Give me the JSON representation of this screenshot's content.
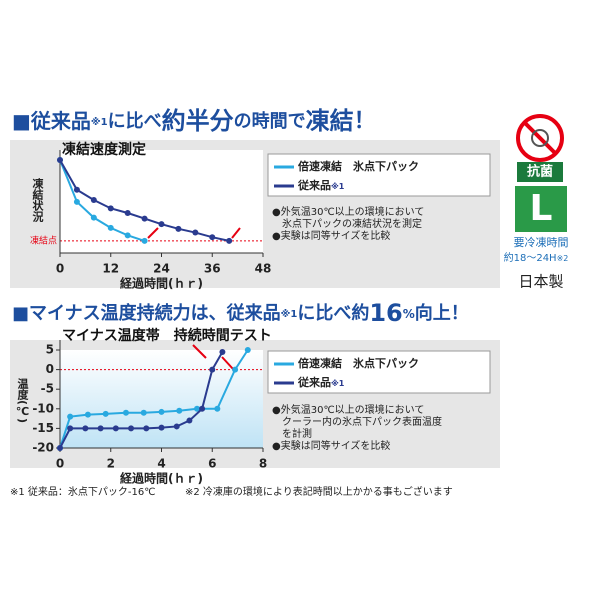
{
  "headings": [
    {
      "parts": [
        "■従来品",
        "※1",
        "に比べ",
        "約半分",
        "の時間で",
        "凍結",
        "！"
      ]
    },
    {
      "parts": [
        "■マイナス温度持続力は、従来品",
        "※1",
        "に比べ約",
        "16",
        "%",
        "向上！"
      ]
    }
  ],
  "badge": {
    "label": "抗菌",
    "size": "L",
    "freeze_time_label": "要冷凍時間",
    "freeze_time": "約18～24H",
    "freeze_time_note": "※2",
    "origin": "日本製"
  },
  "footnotes": [
    "※1 従来品：氷点下パック-16℃",
    "※2 冷凍庫の環境により表記時間以上かかる事もございます"
  ],
  "chart_data": [
    {
      "type": "line",
      "title": "凍結速度測定",
      "y_label": "凍結状況",
      "x_label": "経過時間(ｈｒ)",
      "threshold": {
        "value": 13,
        "label": "凍結点",
        "color": "#e60012"
      },
      "xlim": [
        0,
        48
      ],
      "xticks": [
        0,
        12,
        24,
        36,
        48
      ],
      "ylim": [
        0,
        100
      ],
      "series": [
        {
          "name": "倍速凍結　氷点下パック",
          "color": "#29a9e0",
          "x": [
            0,
            4,
            8,
            12,
            16,
            20
          ],
          "values": [
            100,
            55,
            38,
            27,
            19,
            13
          ]
        },
        {
          "name": "従来品",
          "name_note": "※1",
          "color": "#2a3b8f",
          "x": [
            0,
            4,
            8,
            12,
            16,
            20,
            24,
            28,
            32,
            36,
            40
          ],
          "values": [
            100,
            68,
            57,
            48,
            43,
            37,
            31,
            26,
            22,
            17,
            13
          ]
        }
      ],
      "notes": [
        "●外気温30℃以上の環境において",
        "氷点下パックの凍結状況を測定",
        "●実験は同等サイズを比較"
      ]
    },
    {
      "type": "line",
      "title": "マイナス温度帯　持続時間テスト",
      "y_label": "温度(℃)",
      "x_label": "経過時間(ｈｒ)",
      "threshold": {
        "value": 0,
        "color": "#e60012"
      },
      "xlim": [
        0,
        8
      ],
      "xticks": [
        0,
        2,
        4,
        6,
        8
      ],
      "ylim": [
        -20,
        5
      ],
      "yticks": [
        5,
        0,
        -5,
        -10,
        -15,
        -20
      ],
      "series": [
        {
          "name": "倍速凍結　氷点下パック",
          "color": "#29a9e0",
          "x": [
            0,
            0.4,
            1.1,
            1.8,
            2.6,
            3.3,
            4,
            4.7,
            5.4,
            6.2,
            6.9,
            7.4
          ],
          "values": [
            -20,
            -12,
            -11.5,
            -11.3,
            -11,
            -11,
            -10.8,
            -10.5,
            -10,
            -10,
            0,
            5
          ]
        },
        {
          "name": "従来品",
          "name_note": "※1",
          "color": "#2a3b8f",
          "x": [
            0,
            0.4,
            1,
            1.6,
            2.2,
            2.8,
            3.4,
            4,
            4.6,
            5.1,
            5.6,
            6,
            6.4
          ],
          "values": [
            -20,
            -15,
            -15,
            -15,
            -15,
            -15,
            -15,
            -14.8,
            -14.5,
            -13,
            -10,
            0,
            4.5
          ]
        }
      ],
      "notes": [
        "●外気温30℃以上の環境において",
        "クーラー内の氷点下パック表面温度",
        "を計測",
        "●実験は同等サイズを比較"
      ]
    }
  ]
}
